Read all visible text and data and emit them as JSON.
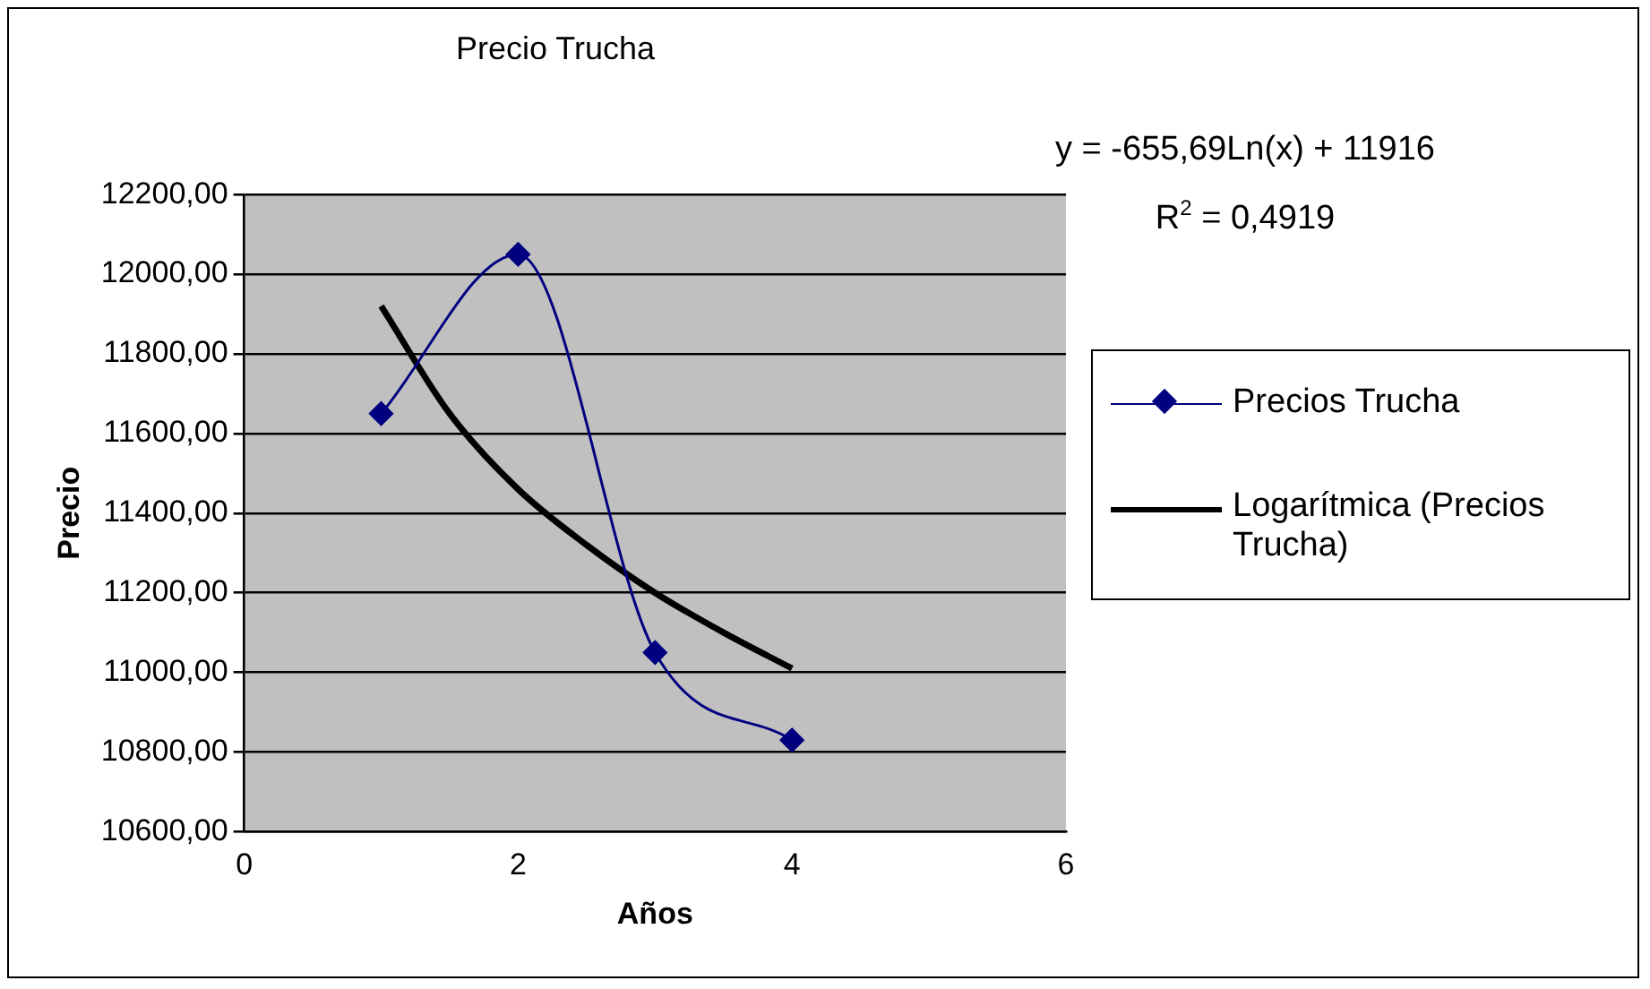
{
  "chart_data": {
    "type": "scatter",
    "title": "Precio Trucha",
    "xlabel": "Años",
    "ylabel": "Precio",
    "series": [
      {
        "name": "Precios Trucha",
        "type": "line",
        "color": "#000080",
        "marker": "diamond",
        "x": [
          1,
          2,
          3,
          4
        ],
        "values": [
          11650,
          12050,
          11050,
          10830
        ]
      },
      {
        "name": "Logarítmica (Precios Trucha)",
        "type": "line",
        "color": "#000000",
        "marker": "none",
        "x": [
          1,
          1.5,
          2,
          2.5,
          3,
          3.5,
          4
        ],
        "values": [
          11920,
          11650,
          11460,
          11320,
          11200,
          11100,
          11010
        ]
      }
    ],
    "xlim": [
      0,
      6
    ],
    "xticks": [
      0,
      2,
      4,
      6
    ],
    "ylim": [
      10600,
      12200
    ],
    "yticks": [
      {
        "value": 10600,
        "label": "10600,00"
      },
      {
        "value": 10800,
        "label": "10800,00"
      },
      {
        "value": 11000,
        "label": "11000,00"
      },
      {
        "value": 11200,
        "label": "11200,00"
      },
      {
        "value": 11400,
        "label": "11400,00"
      },
      {
        "value": 11600,
        "label": "11600,00"
      },
      {
        "value": 11800,
        "label": "11800,00"
      },
      {
        "value": 12000,
        "label": "12000,00"
      },
      {
        "value": 12200,
        "label": "12200,00"
      }
    ],
    "grid": "y",
    "legend": "right",
    "annotations": [
      "y = -655,69Ln(x) + 11916",
      "R$^{2}$ = 0,4919"
    ]
  }
}
